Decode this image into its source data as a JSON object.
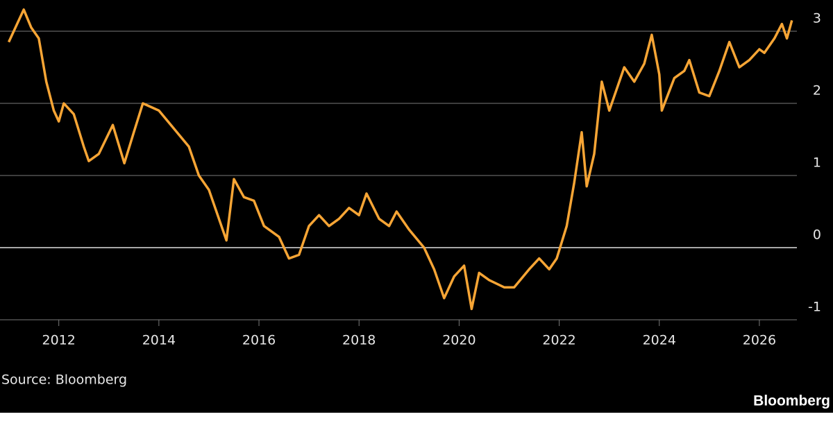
{
  "chart_data": {
    "type": "line",
    "source": "Source: Bloomberg",
    "brand": "Bloomberg",
    "xlim": [
      2010.95,
      2026.75
    ],
    "xticks": [
      2012,
      2014,
      2016,
      2018,
      2020,
      2022,
      2024,
      2026
    ],
    "ylim": [
      -1,
      3.4
    ],
    "yticks": [
      -1,
      0,
      1,
      2,
      3
    ],
    "grid": true,
    "x": [
      2011.0,
      2011.1,
      2011.3,
      2011.45,
      2011.6,
      2011.75,
      2011.9,
      2012.0,
      2012.1,
      2012.3,
      2012.5,
      2012.6,
      2012.8,
      2013.08,
      2013.31,
      2013.5,
      2013.68,
      2014.0,
      2014.3,
      2014.6,
      2014.8,
      2015.0,
      2015.3,
      2015.35,
      2015.5,
      2015.7,
      2015.9,
      2016.1,
      2016.4,
      2016.6,
      2016.8,
      2017.0,
      2017.2,
      2017.4,
      2017.6,
      2017.8,
      2018.0,
      2018.15,
      2018.4,
      2018.6,
      2018.75,
      2019.0,
      2019.3,
      2019.5,
      2019.7,
      2019.9,
      2020.1,
      2020.25,
      2020.4,
      2020.6,
      2020.9,
      2021.1,
      2021.4,
      2021.6,
      2021.8,
      2021.95,
      2022.15,
      2022.3,
      2022.45,
      2022.55,
      2022.7,
      2022.85,
      2023.0,
      2023.15,
      2023.3,
      2023.5,
      2023.7,
      2023.85,
      2024.0,
      2024.05,
      2024.3,
      2024.5,
      2024.6,
      2024.8,
      2025.0,
      2025.2,
      2025.4,
      2025.6,
      2025.8,
      2026.0,
      2026.1,
      2026.3,
      2026.45,
      2026.55,
      2026.65
    ],
    "series": [
      {
        "color": "#f7a535",
        "values": [
          2.85,
          3.0,
          3.3,
          3.05,
          2.9,
          2.3,
          1.9,
          1.75,
          2.0,
          1.85,
          1.4,
          1.2,
          1.3,
          1.7,
          1.17,
          1.6,
          2.0,
          1.9,
          1.65,
          1.4,
          1.0,
          0.8,
          0.2,
          0.1,
          0.95,
          0.7,
          0.65,
          0.3,
          0.15,
          -0.15,
          -0.1,
          0.3,
          0.45,
          0.3,
          0.4,
          0.55,
          0.45,
          0.75,
          0.4,
          0.3,
          0.5,
          0.25,
          0.0,
          -0.3,
          -0.7,
          -0.4,
          -0.25,
          -0.85,
          -0.35,
          -0.45,
          -0.55,
          -0.55,
          -0.3,
          -0.15,
          -0.3,
          -0.15,
          0.3,
          0.9,
          1.6,
          0.85,
          1.3,
          2.3,
          1.9,
          2.2,
          2.5,
          2.3,
          2.55,
          2.95,
          2.4,
          1.9,
          2.35,
          2.45,
          2.6,
          2.15,
          2.1,
          2.45,
          2.85,
          2.5,
          2.6,
          2.75,
          2.7,
          2.9,
          3.1,
          2.9,
          3.15
        ]
      }
    ]
  }
}
